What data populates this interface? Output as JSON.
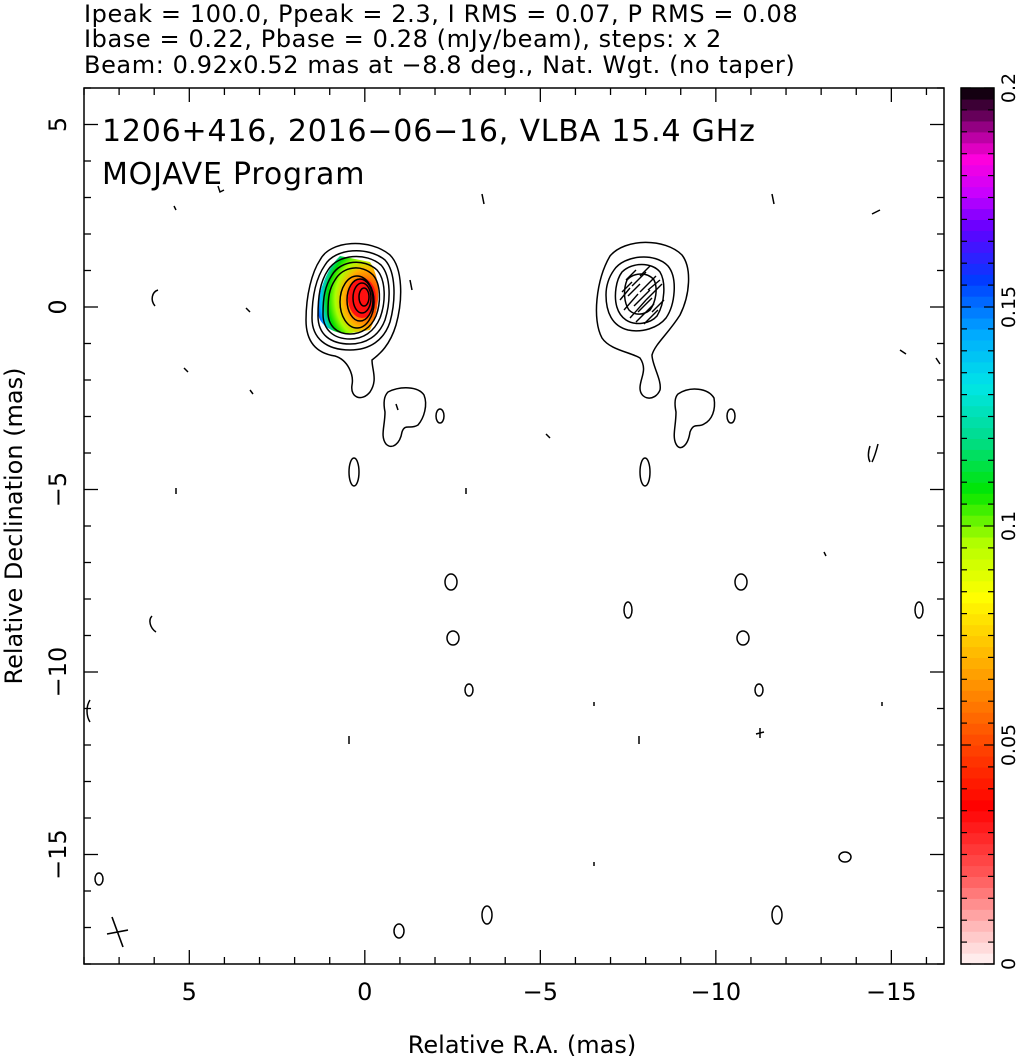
{
  "header": {
    "line1": "Ipeak = 100.0, Ppeak = 2.3, I RMS = 0.07, P RMS = 0.08",
    "line2": "Ibase = 0.22, Pbase = 0.28 (mJy/beam), steps: x 2",
    "line3": "Beam: 0.92x0.52 mas at −8.8 deg., Nat. Wgt. (no taper)"
  },
  "chart_data": {
    "type": "heatmap",
    "title": "1206+416, 2016−06−16, VLBA 15.4 GHz",
    "subtitle": "MOJAVE Program",
    "xlabel": "Relative R.A. (mas)",
    "ylabel": "Relative Declination (mas)",
    "xlim": [
      8,
      -16.5
    ],
    "ylim": [
      -18,
      6
    ],
    "x_ticks": [
      {
        "value": 5,
        "label": "5"
      },
      {
        "value": 0,
        "label": "0"
      },
      {
        "value": -5,
        "label": "−5"
      },
      {
        "value": -10,
        "label": "−10"
      },
      {
        "value": -15,
        "label": "−15"
      }
    ],
    "y_ticks": [
      {
        "value": 5,
        "label": "5"
      },
      {
        "value": 0,
        "label": "0"
      },
      {
        "value": -5,
        "label": "−5"
      },
      {
        "value": -10,
        "label": "−10"
      },
      {
        "value": -15,
        "label": "−15"
      }
    ],
    "colorbar": {
      "range": [
        0,
        0.2
      ],
      "ticks": [
        {
          "value": 0,
          "label": "0"
        },
        {
          "value": 0.05,
          "label": "0.05"
        },
        {
          "value": 0.1,
          "label": "0.1"
        },
        {
          "value": 0.15,
          "label": "0.15"
        },
        {
          "value": 0.2,
          "label": "0.2"
        }
      ]
    },
    "panels": [
      {
        "name": "total-intensity-with-fractional-polarization",
        "center": [
          0,
          0
        ],
        "contour_levels_mjy_per_beam": [
          0.22,
          0.44,
          0.88,
          1.76,
          3.52,
          7.04,
          14.08,
          28.16,
          56.32
        ],
        "fractional_polarization_colored": true
      },
      {
        "name": "polarized-intensity-with-evpa",
        "center": [
          -7.8,
          0
        ],
        "contour_levels_mjy_per_beam": [
          0.28,
          0.56,
          1.12
        ],
        "evpa_ticks": true
      }
    ],
    "beam": {
      "major_mas": 0.92,
      "minor_mas": 0.52,
      "pa_deg": -8.8,
      "position": "bottom-left"
    }
  }
}
